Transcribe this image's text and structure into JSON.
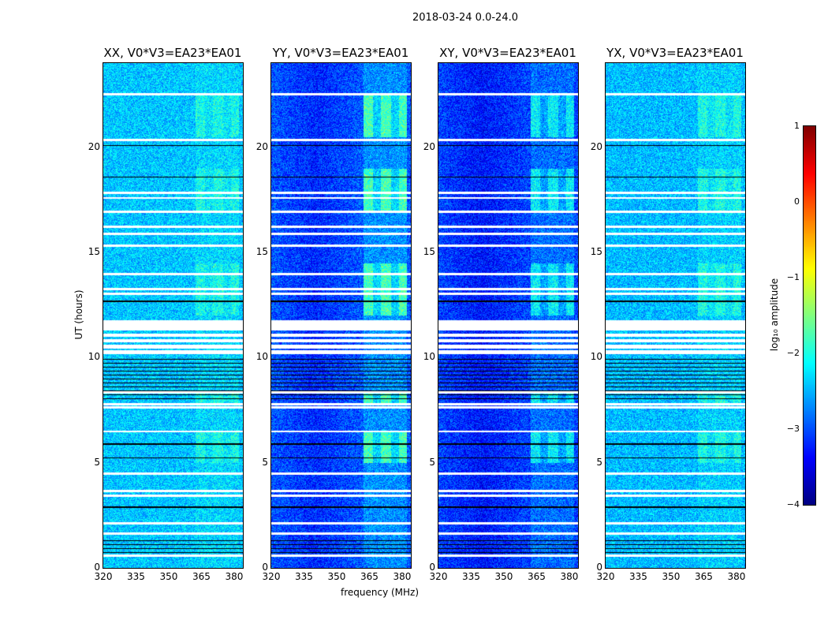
{
  "chart_data": {
    "type": "heatmap",
    "suptitle": "2018-03-24 0.0-24.0",
    "xlabel": "frequency (MHz)",
    "ylabel": "UT (hours)",
    "xlim": [
      320,
      384
    ],
    "ylim": [
      0,
      24
    ],
    "xticks": [
      "320",
      "335",
      "350",
      "365",
      "380"
    ],
    "yticks": [
      "0",
      "5",
      "10",
      "15",
      "20"
    ],
    "panels": [
      {
        "title": "XX, V0*V3=EA23*EA01",
        "base": -2.4,
        "rfi": 0.5
      },
      {
        "title": "YY, V0*V3=EA23*EA01",
        "base": -2.95,
        "rfi": 1.6
      },
      {
        "title": "XY, V0*V3=EA23*EA01",
        "base": -3.05,
        "rfi": 1.2
      },
      {
        "title": "YX, V0*V3=EA23*EA01",
        "base": -2.45,
        "rfi": 0.6
      }
    ],
    "rfi_band_mhz": [
      362,
      382
    ],
    "rfi_hours": [
      [
        12,
        14.5
      ],
      [
        5,
        6.5
      ],
      [
        7.8,
        8.3
      ],
      [
        17,
        19
      ],
      [
        20.5,
        22.5
      ]
    ],
    "flagged_hours": [
      22.54,
      20.36,
      17.85,
      17.6,
      16.95,
      16.24,
      15.9,
      15.34,
      13.99,
      13.28,
      13.05,
      11.06,
      10.8,
      10.5,
      10.24,
      8.36,
      7.8,
      7.65,
      6.5,
      4.5,
      3.68,
      3.45,
      2.14,
      1.65,
      0.6
    ],
    "flagged_block_hours": [
      11.3,
      11.8
    ],
    "dropout_hours": [
      20.1,
      18.6,
      12.7,
      5.25,
      5.9,
      2.9
    ],
    "dropout_blocks": [
      [
        7.9,
        10
      ],
      [
        0.4,
        1.5
      ]
    ],
    "colorbar": {
      "label": "log₁₀ amplitude",
      "min": -4,
      "max": 1,
      "ticks": [
        "1",
        "0",
        "−1",
        "−2",
        "−3",
        "−4"
      ]
    }
  }
}
